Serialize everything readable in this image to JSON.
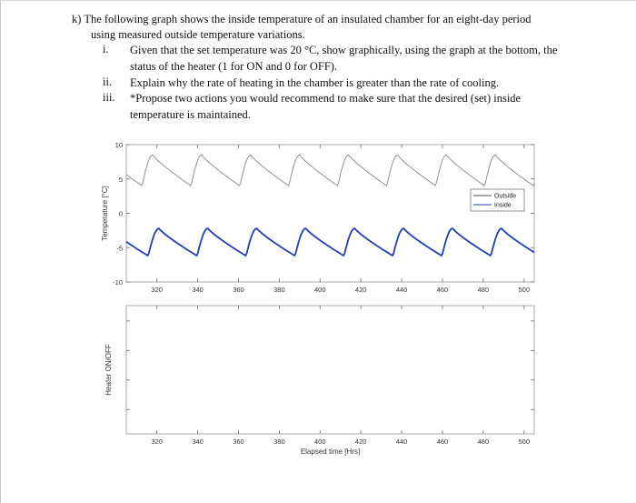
{
  "question": {
    "label": "k)",
    "intro_line1": "The following graph shows the inside temperature of an insulated chamber for an eight-day period",
    "intro_line2": "using measured outside temperature variations.",
    "items": [
      {
        "num": "i.",
        "line1": "Given that the set temperature was 20 °C, show graphically, using the graph at the bottom, the",
        "line2": "status of the heater (1 for ON and 0 for OFF)."
      },
      {
        "num": "ii.",
        "line1": "Explain why the rate of heating in the chamber is greater than the rate of cooling.",
        "line2": ""
      },
      {
        "num": "iii.",
        "line1": "*Propose two actions you would recommend to make sure that the desired (set) inside",
        "line2": "temperature is maintained."
      }
    ]
  },
  "chart_data": [
    {
      "type": "line",
      "title": "",
      "xlabel": "",
      "ylabel": "Temperature [°C]",
      "xlim": [
        305,
        505
      ],
      "ylim": [
        -10,
        10
      ],
      "x_ticks": [
        "320",
        "340",
        "360",
        "380",
        "400",
        "420",
        "440",
        "460",
        "480",
        "500"
      ],
      "y_ticks": [
        "10",
        "5",
        "0",
        "-5",
        "-10"
      ],
      "legend": {
        "position": "right",
        "entries": [
          "Outside",
          "Inside"
        ]
      },
      "series": [
        {
          "name": "Outside",
          "color": "#888888",
          "period": 24,
          "min": 4.0,
          "max": 8.5,
          "peak_x": [
            318,
            342,
            366,
            390,
            414,
            438,
            462,
            486
          ]
        },
        {
          "name": "Inside",
          "color": "#1f3fb5",
          "period": 24,
          "min": -6.2,
          "max": -2.2,
          "peak_x": [
            321,
            345,
            369,
            393,
            417,
            441,
            465,
            489
          ]
        }
      ]
    },
    {
      "type": "line",
      "title": "",
      "xlabel": "Elapsed time [Hrs]",
      "ylabel": "Heater ON/OFF",
      "xlim": [
        305,
        505
      ],
      "x_ticks": [
        "320",
        "340",
        "360",
        "380",
        "400",
        "420",
        "440",
        "460",
        "480",
        "500"
      ],
      "series": []
    }
  ],
  "colors": {
    "axis": "#6b6b6b",
    "outside": "#888888",
    "inside": "#1f3fb5"
  }
}
